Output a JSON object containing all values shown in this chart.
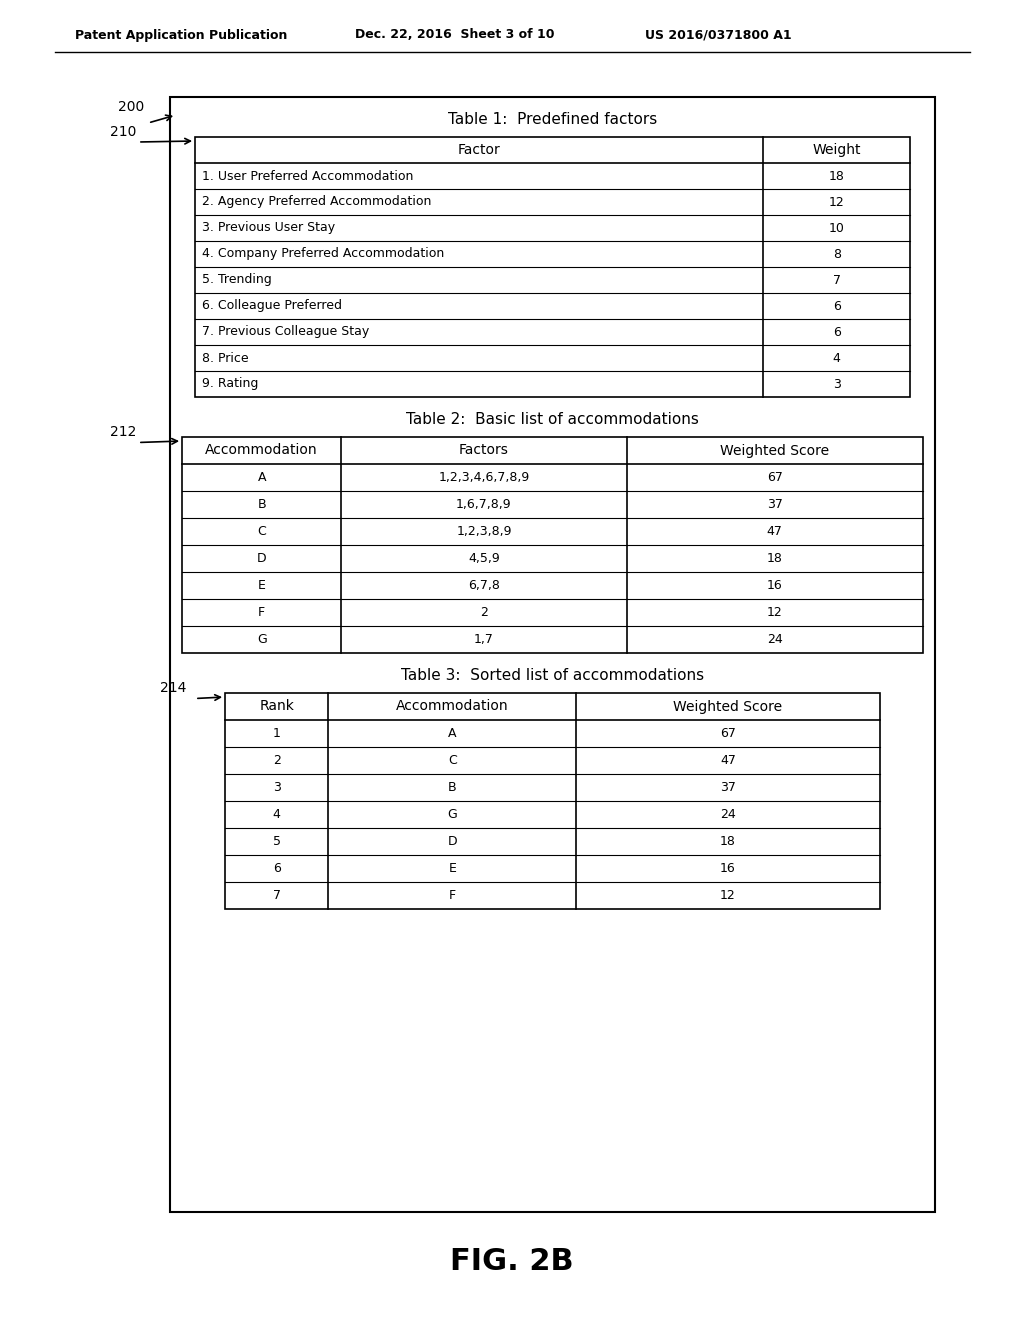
{
  "header_text_left": "Patent Application Publication",
  "header_text_mid": "Dec. 22, 2016  Sheet 3 of 10",
  "header_text_right": "US 2016/0371800 A1",
  "fig_label": "FIG. 2B",
  "table1_title": "Table 1:  Predefined factors",
  "table1_headers": [
    "Factor",
    "Weight"
  ],
  "table1_rows": [
    [
      "1. User Preferred Accommodation",
      "18"
    ],
    [
      "2. Agency Preferred Accommodation",
      "12"
    ],
    [
      "3. Previous User Stay",
      "10"
    ],
    [
      "4. Company Preferred Accommodation",
      "8"
    ],
    [
      "5. Trending",
      "7"
    ],
    [
      "6. Colleague Preferred",
      "6"
    ],
    [
      "7. Previous Colleague Stay",
      "6"
    ],
    [
      "8. Price",
      "4"
    ],
    [
      "9. Rating",
      "3"
    ]
  ],
  "table2_title": "Table 2:  Basic list of accommodations",
  "table2_headers": [
    "Accommodation",
    "Factors",
    "Weighted Score"
  ],
  "table2_rows": [
    [
      "A",
      "1,2,3,4,6,7,8,9",
      "67"
    ],
    [
      "B",
      "1,6,7,8,9",
      "37"
    ],
    [
      "C",
      "1,2,3,8,9",
      "47"
    ],
    [
      "D",
      "4,5,9",
      "18"
    ],
    [
      "E",
      "6,7,8",
      "16"
    ],
    [
      "F",
      "2",
      "12"
    ],
    [
      "G",
      "1,7",
      "24"
    ]
  ],
  "table3_title": "Table 3:  Sorted list of accommodations",
  "table3_headers": [
    "Rank",
    "Accommodation",
    "Weighted Score"
  ],
  "table3_rows": [
    [
      "1",
      "A",
      "67"
    ],
    [
      "2",
      "C",
      "47"
    ],
    [
      "3",
      "B",
      "37"
    ],
    [
      "4",
      "G",
      "24"
    ],
    [
      "5",
      "D",
      "18"
    ],
    [
      "6",
      "E",
      "16"
    ],
    [
      "7",
      "F",
      "12"
    ]
  ],
  "bg_color": "#ffffff",
  "line_color": "#000000",
  "text_color": "#000000"
}
